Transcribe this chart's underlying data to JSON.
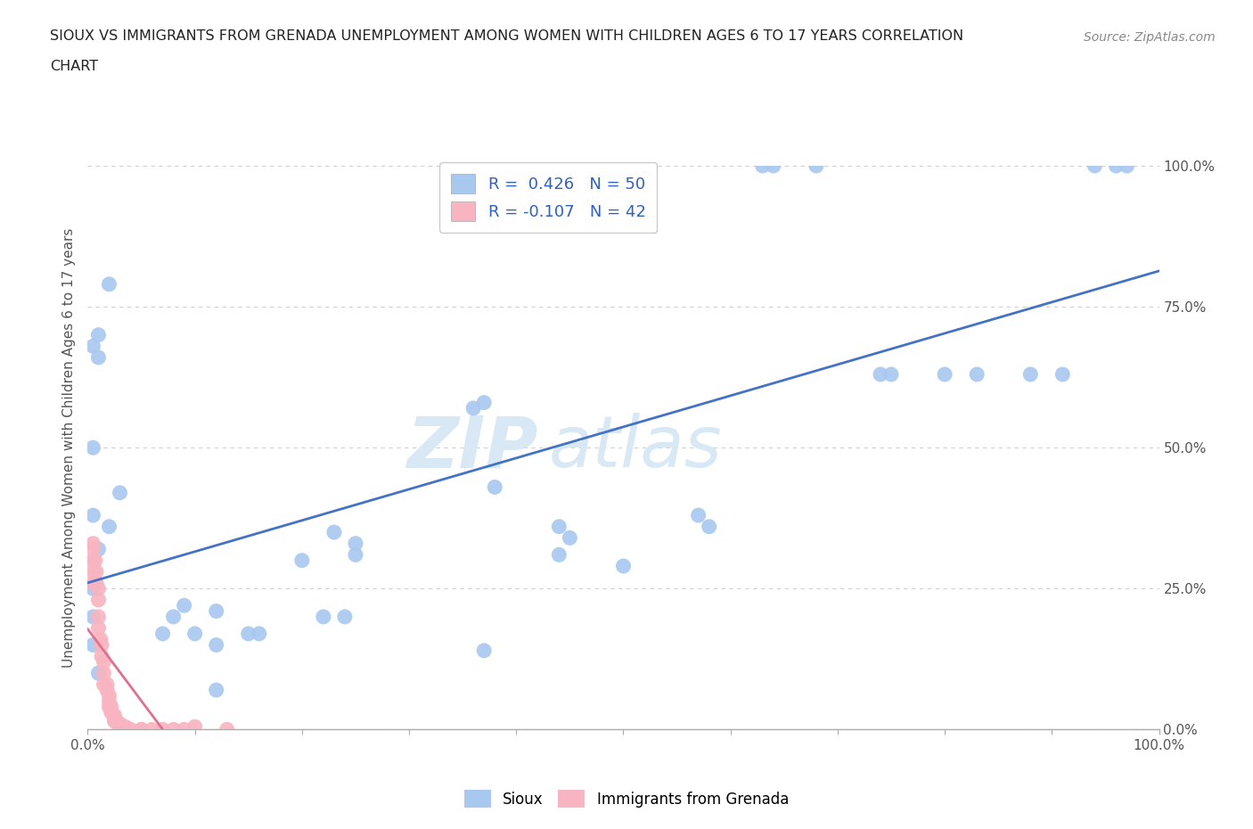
{
  "title_line1": "SIOUX VS IMMIGRANTS FROM GRENADA UNEMPLOYMENT AMONG WOMEN WITH CHILDREN AGES 6 TO 17 YEARS CORRELATION",
  "title_line2": "CHART",
  "source": "Source: ZipAtlas.com",
  "ylabel": "Unemployment Among Women with Children Ages 6 to 17 years",
  "watermark_part1": "ZIP",
  "watermark_part2": "atlas",
  "legend_label1": "Sioux",
  "legend_label2": "Immigrants from Grenada",
  "R1": 0.426,
  "N1": 50,
  "R2": -0.107,
  "N2": 42,
  "sioux_color": "#a8c8f0",
  "grenada_color": "#f8b4c0",
  "line1_color": "#4472c4",
  "line2_color": "#e07090",
  "sioux_x": [
    0.02,
    0.01,
    0.005,
    0.01,
    0.005,
    0.005,
    0.01,
    0.02,
    0.03,
    0.005,
    0.005,
    0.005,
    0.01,
    0.15,
    0.16,
    0.22,
    0.24,
    0.25,
    0.25,
    0.23,
    0.63,
    0.64,
    0.68,
    0.74,
    0.75,
    0.8,
    0.83,
    0.88,
    0.91,
    0.94,
    0.96,
    0.97,
    0.57,
    0.58,
    0.44,
    0.45,
    0.5,
    0.36,
    0.37,
    0.38,
    0.44,
    0.37,
    0.12,
    0.12,
    0.1,
    0.12,
    0.09,
    0.07,
    0.08,
    0.2
  ],
  "sioux_y": [
    0.79,
    0.7,
    0.68,
    0.66,
    0.5,
    0.38,
    0.32,
    0.36,
    0.42,
    0.25,
    0.2,
    0.15,
    0.1,
    0.17,
    0.17,
    0.2,
    0.2,
    0.31,
    0.33,
    0.35,
    1.0,
    1.0,
    1.0,
    0.63,
    0.63,
    0.63,
    0.63,
    0.63,
    0.63,
    1.0,
    1.0,
    1.0,
    0.38,
    0.36,
    0.36,
    0.34,
    0.29,
    0.57,
    0.58,
    0.43,
    0.31,
    0.14,
    0.15,
    0.07,
    0.17,
    0.21,
    0.22,
    0.17,
    0.2,
    0.3
  ],
  "grenada_x": [
    0.005,
    0.005,
    0.005,
    0.005,
    0.005,
    0.007,
    0.008,
    0.008,
    0.01,
    0.01,
    0.01,
    0.01,
    0.012,
    0.013,
    0.013,
    0.015,
    0.015,
    0.015,
    0.018,
    0.018,
    0.02,
    0.02,
    0.02,
    0.022,
    0.022,
    0.025,
    0.025,
    0.025,
    0.027,
    0.028,
    0.03,
    0.032,
    0.035,
    0.04,
    0.05,
    0.05,
    0.06,
    0.07,
    0.08,
    0.09,
    0.1,
    0.13
  ],
  "grenada_y": [
    0.33,
    0.32,
    0.3,
    0.28,
    0.26,
    0.3,
    0.28,
    0.26,
    0.25,
    0.23,
    0.2,
    0.18,
    0.16,
    0.15,
    0.13,
    0.12,
    0.1,
    0.08,
    0.08,
    0.07,
    0.06,
    0.05,
    0.04,
    0.04,
    0.03,
    0.025,
    0.02,
    0.015,
    0.015,
    0.01,
    0.01,
    0.005,
    0.005,
    0.0,
    0.0,
    0.0,
    0.0,
    0.0,
    0.0,
    0.0,
    0.005,
    0.0
  ],
  "xlim": [
    0.0,
    1.0
  ],
  "ylim": [
    0.0,
    1.0
  ],
  "yticks": [
    0.0,
    0.25,
    0.5,
    0.75,
    1.0
  ],
  "ytick_labels": [
    "0.0%",
    "25.0%",
    "50.0%",
    "75.0%",
    "100.0%"
  ],
  "xticks": [
    0.0,
    0.1,
    0.2,
    0.3,
    0.4,
    0.5,
    0.6,
    0.7,
    0.8,
    0.9,
    1.0
  ],
  "xtick_labels_show": [
    "0.0%",
    "",
    "",
    "",
    "",
    "",
    "",
    "",
    "",
    "",
    "100.0%"
  ],
  "bg_color": "#ffffff",
  "plot_bg": "#ffffff",
  "grid_color": "#d0d0d0"
}
